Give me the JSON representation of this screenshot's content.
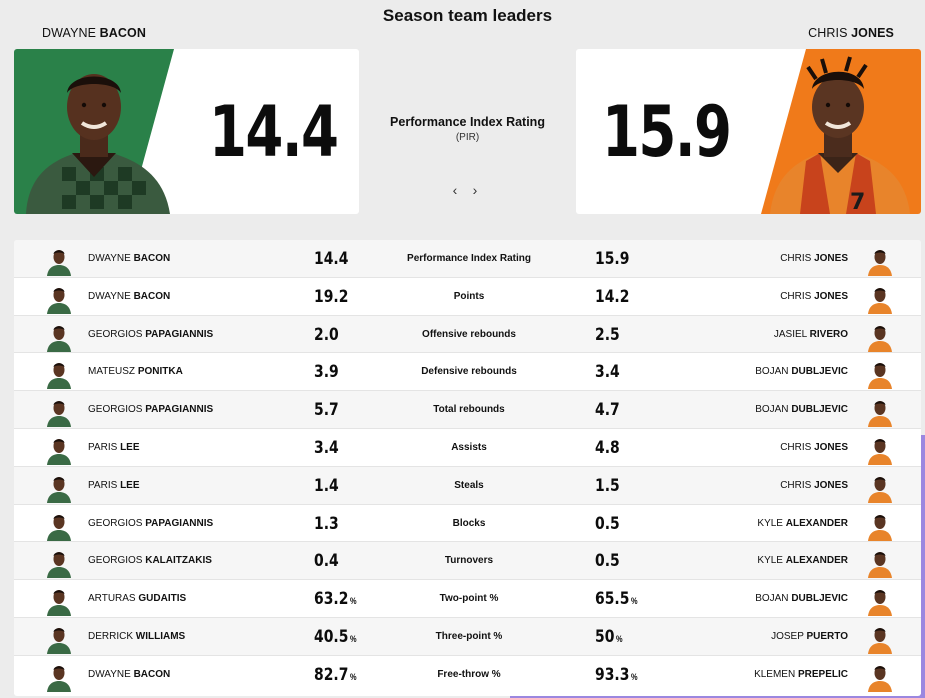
{
  "title": "Season team leaders",
  "hero": {
    "left": {
      "first": "DWAYNE",
      "last": "BACON",
      "value": "14.4",
      "team_color": "#1d7a3e"
    },
    "right": {
      "first": "CHRIS",
      "last": "JONES",
      "value": "15.9",
      "team_color": "#f07a1a"
    },
    "stat_label": "Performance Index Rating",
    "stat_abbr": "(PIR)"
  },
  "nav": {
    "prev": "‹",
    "next": "›"
  },
  "rows": [
    {
      "stat": "Performance Index Rating",
      "lf": "DWAYNE",
      "ll": "BACON",
      "lv": "14.4",
      "lp": "",
      "rf": "CHRIS",
      "rl": "JONES",
      "rv": "15.9",
      "rp": ""
    },
    {
      "stat": "Points",
      "lf": "DWAYNE",
      "ll": "BACON",
      "lv": "19.2",
      "lp": "",
      "rf": "CHRIS",
      "rl": "JONES",
      "rv": "14.2",
      "rp": ""
    },
    {
      "stat": "Offensive rebounds",
      "lf": "GEORGIOS",
      "ll": "PAPAGIANNIS",
      "lv": "2.0",
      "lp": "",
      "rf": "JASIEL",
      "rl": "RIVERO",
      "rv": "2.5",
      "rp": ""
    },
    {
      "stat": "Defensive rebounds",
      "lf": "MATEUSZ",
      "ll": "PONITKA",
      "lv": "3.9",
      "lp": "",
      "rf": "BOJAN",
      "rl": "DUBLJEVIC",
      "rv": "3.4",
      "rp": ""
    },
    {
      "stat": "Total rebounds",
      "lf": "GEORGIOS",
      "ll": "PAPAGIANNIS",
      "lv": "5.7",
      "lp": "",
      "rf": "BOJAN",
      "rl": "DUBLJEVIC",
      "rv": "4.7",
      "rp": ""
    },
    {
      "stat": "Assists",
      "lf": "PARIS",
      "ll": "LEE",
      "lv": "3.4",
      "lp": "",
      "rf": "CHRIS",
      "rl": "JONES",
      "rv": "4.8",
      "rp": ""
    },
    {
      "stat": "Steals",
      "lf": "PARIS",
      "ll": "LEE",
      "lv": "1.4",
      "lp": "",
      "rf": "CHRIS",
      "rl": "JONES",
      "rv": "1.5",
      "rp": ""
    },
    {
      "stat": "Blocks",
      "lf": "GEORGIOS",
      "ll": "PAPAGIANNIS",
      "lv": "1.3",
      "lp": "",
      "rf": "KYLE",
      "rl": "ALEXANDER",
      "rv": "0.5",
      "rp": ""
    },
    {
      "stat": "Turnovers",
      "lf": "GEORGIOS",
      "ll": "KALAITZAKIS",
      "lv": "0.4",
      "lp": "",
      "rf": "KYLE",
      "rl": "ALEXANDER",
      "rv": "0.5",
      "rp": ""
    },
    {
      "stat": "Two-point %",
      "lf": "ARTURAS",
      "ll": "GUDAITIS",
      "lv": "63.2",
      "lp": "%",
      "rf": "BOJAN",
      "rl": "DUBLJEVIC",
      "rv": "65.5",
      "rp": "%"
    },
    {
      "stat": "Three-point %",
      "lf": "DERRICK",
      "ll": "WILLIAMS",
      "lv": "40.5",
      "lp": "%",
      "rf": "JOSEP",
      "rl": "PUERTO",
      "rv": "50",
      "rp": "%"
    },
    {
      "stat": "Free-throw %",
      "lf": "DWAYNE",
      "ll": "BACON",
      "lv": "82.7",
      "lp": "%",
      "rf": "KLEMEN",
      "rl": "PREPELIC",
      "rv": "93.3",
      "rp": "%"
    }
  ]
}
